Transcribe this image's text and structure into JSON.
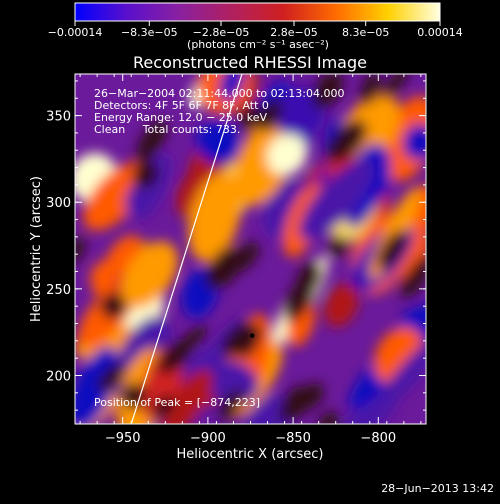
{
  "chart_data": {
    "type": "heatmap",
    "title": "Reconstructed RHESSI Image",
    "xlabel": "Heliocentric X (arcsec)",
    "ylabel": "Heliocentric Y (arcsec)",
    "xlim": [
      -978,
      -772
    ],
    "ylim": [
      172,
      374
    ],
    "x_ticks": [
      -950,
      -900,
      -850,
      -800
    ],
    "x_tick_labels": [
      "−950",
      "−900",
      "−850",
      "−800"
    ],
    "y_ticks": [
      200,
      250,
      300,
      350
    ],
    "y_tick_labels": [
      "200",
      "250",
      "300",
      "350"
    ],
    "colorbar": {
      "min": -0.00014,
      "max": 0.00014,
      "ticks": [
        -0.00014,
        -8.3e-05,
        -2.8e-05,
        2.8e-05,
        8.3e-05,
        0.00014
      ],
      "tick_labels": [
        "−0.00014",
        "−8.3e−05",
        "−2.8e−05",
        "2.8e−05",
        "8.3e−05",
        "0.00014"
      ],
      "unit_label": "(photons cm⁻² s⁻¹ asec⁻²)",
      "colors": [
        "#0000ff",
        "#5a10cc",
        "#8a20a0",
        "#b02060",
        "#d02020",
        "#ff6a00",
        "#ffd000",
        "#ffffe0"
      ]
    },
    "annotations": [
      "26−Mar−2004 02:11:44.000 to 02:13:04.000",
      "Detectors: 4F 5F 6F 7F 8F, Att 0",
      "Energy Range: 12.0 − 25.0 keV",
      "Clean     Total counts: 733.",
      "Position of Peak = [−874,223]"
    ],
    "peak": [
      -874,
      223
    ],
    "limb_line": [
      [
        -945,
        172
      ],
      [
        -880,
        374
      ]
    ]
  },
  "footer": {
    "date": "28−Jun−2013 13:42"
  }
}
